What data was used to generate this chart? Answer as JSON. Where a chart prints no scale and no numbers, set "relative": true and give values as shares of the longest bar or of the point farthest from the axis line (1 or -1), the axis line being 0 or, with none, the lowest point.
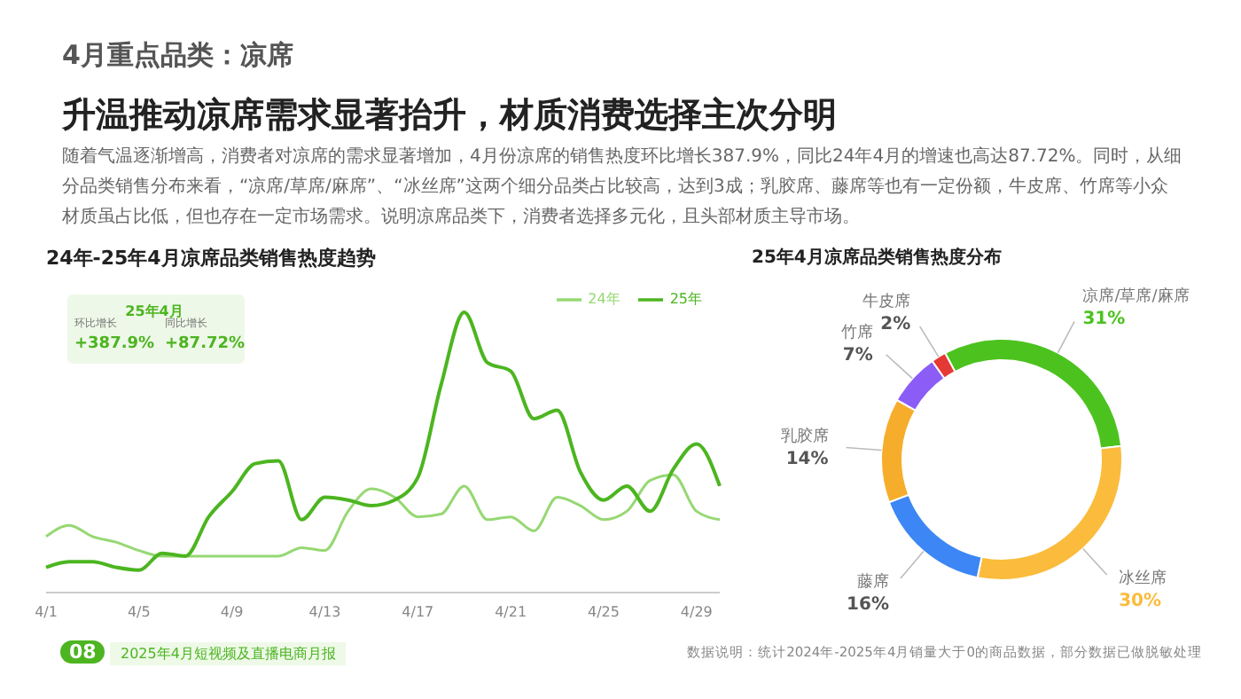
{
  "chart_data": [
    {
      "type": "line",
      "title": "24年-25年4月凉席品类销售热度趋势",
      "relative": true,
      "legend": "top right",
      "categories": [
        "4/1",
        null,
        null,
        null,
        "4/5",
        null,
        null,
        null,
        "4/9",
        null,
        null,
        null,
        "4/13",
        null,
        null,
        null,
        "4/17",
        null,
        null,
        null,
        "4/21",
        null,
        null,
        null,
        "4/25",
        null,
        null,
        null,
        "4/29",
        null
      ],
      "series": [
        {
          "name": "24年",
          "color": "#96d873",
          "values": [
            0.2,
            0.24,
            0.2,
            0.18,
            0.15,
            0.13,
            0.13,
            0.13,
            0.13,
            0.13,
            0.13,
            0.16,
            0.15,
            0.29,
            0.37,
            0.34,
            0.27,
            0.28,
            0.38,
            0.26,
            0.27,
            0.22,
            0.34,
            0.31,
            0.26,
            0.29,
            0.4,
            0.42,
            0.29,
            0.26
          ]
        },
        {
          "name": "25年",
          "color": "#4cb520",
          "values": [
            0.09,
            0.11,
            0.11,
            0.09,
            0.08,
            0.14,
            0.13,
            0.27,
            0.36,
            0.46,
            0.47,
            0.26,
            0.34,
            0.33,
            0.31,
            0.33,
            0.41,
            0.74,
            1,
            0.82,
            0.79,
            0.62,
            0.65,
            0.43,
            0.33,
            0.38,
            0.29,
            0.44,
            0.53,
            0.38
          ]
        }
      ],
      "annotations": [
        "4月重点品类：凉席",
        "升温推动凉席需求显著抬升，材质消费选择主次分明",
        "随着气温逐渐增高，消费者对凉席的需求显著增加，4月份凉席的销售热度环比增长387.9%，同比24年4月的增速也高达87.72%。同时，从细分品类销售分布来看，“凉席/草席/麻席”、“冰丝席”这两个细分品类占比较高，达到3成；乳胶席、藤席等也有一定份额，牛皮席、竹席等小众材质虽占比低，但也存在一定市场需求。说明凉席品类下，消费者选择多元化，且头部材质主导市场。",
        "25年4月",
        "环比增长",
        "+387.9%",
        "同比增长",
        "+87.72%",
        "08",
        "2025年4月短视频及直播电商月报",
        "数据说明：统计2024年-2025年4月销量大于0的商品数据，部分数据已做脱敏处理"
      ]
    },
    {
      "type": "donut",
      "title": "25年4月凉席品类销售热度分布",
      "categories": [
        "凉席/草席/麻席",
        "冰丝席",
        "藤席",
        "乳胶席",
        "竹席",
        "牛皮席"
      ],
      "values": [
        31,
        30,
        16,
        14,
        7,
        2
      ],
      "value_labels": [
        "31%",
        "30%",
        "16%",
        "14%",
        "7%",
        "2%"
      ],
      "colors": [
        "#4cc21f",
        "#fbbb3c",
        "#3c86f5",
        "#f7ad2c",
        "#8b5cf6",
        "#e53935"
      ]
    }
  ]
}
